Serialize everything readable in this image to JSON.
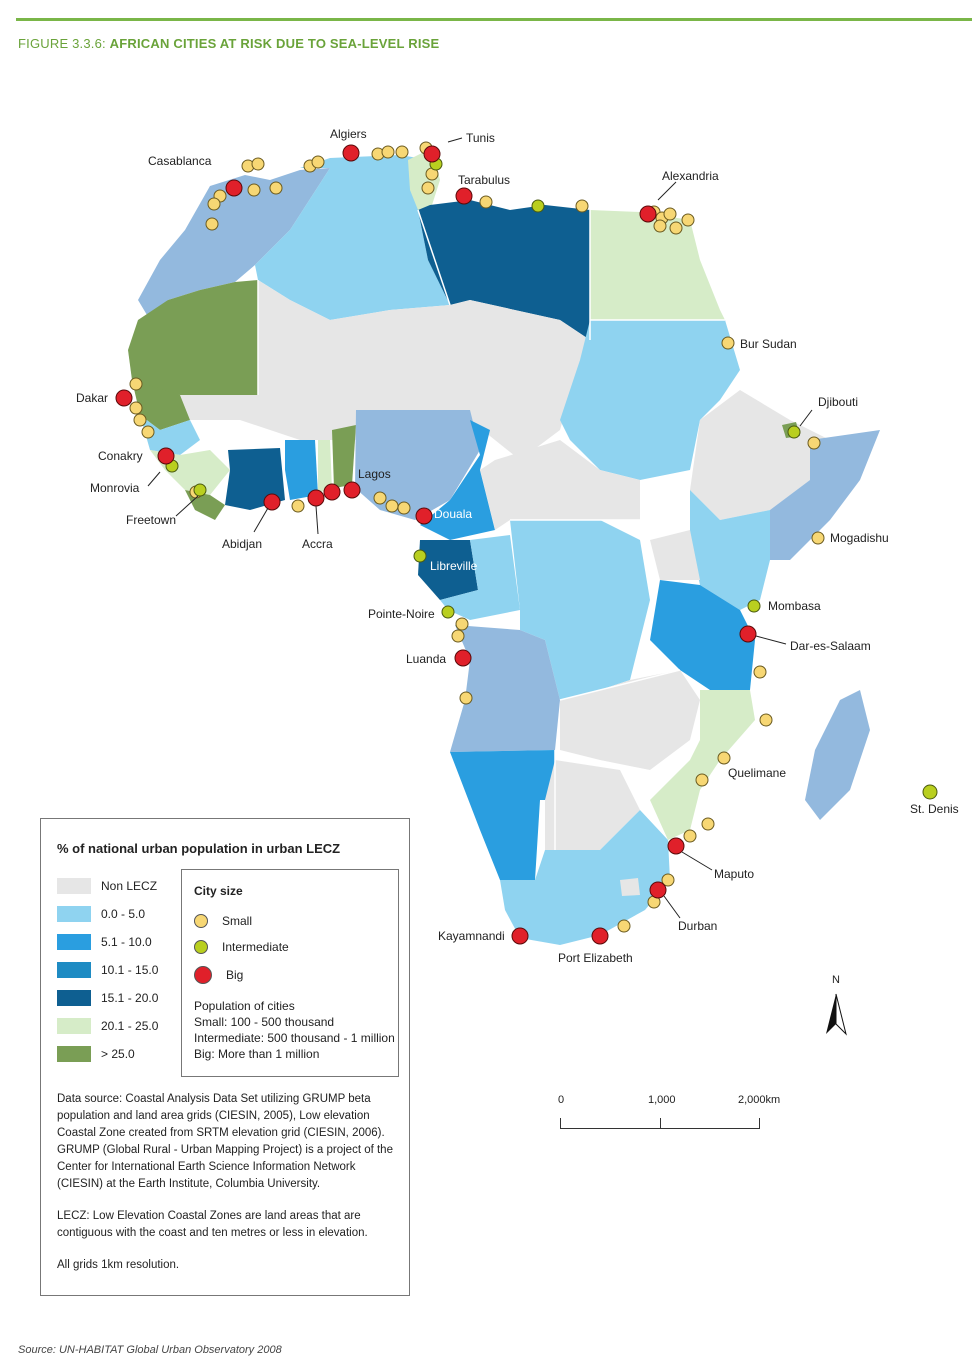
{
  "header": {
    "figure_number": "FIGURE 3.3.6:",
    "figure_title": "AFRICAN CITIES AT RISK DUE TO SEA-LEVEL RISE"
  },
  "legend": {
    "title": "% of national urban population in urban LECZ",
    "categories": [
      {
        "label": "Non LECZ",
        "color": "#e6e6e6"
      },
      {
        "label": "0.0 - 5.0",
        "color": "#8fd3f0"
      },
      {
        "label": "5.1 - 10.0",
        "color": "#2a9ee0"
      },
      {
        "label": "10.1 - 15.0",
        "color": "#1e8bc3"
      },
      {
        "label": "15.1 - 20.0",
        "color": "#0e5f91"
      },
      {
        "label": "20.1 - 25.0",
        "color": "#d6ecc8"
      },
      {
        "label": "> 25.0",
        "color": "#7a9e55"
      }
    ],
    "extra_colors": {
      "medium_blue": "#93b9de"
    },
    "city_size": {
      "title": "City size",
      "small": {
        "label": "Small",
        "color": "#f7d774"
      },
      "intermediate": {
        "label": "Intermediate",
        "color": "#b9cf1f"
      },
      "big": {
        "label": "Big",
        "color": "#e0202a"
      }
    },
    "population": {
      "heading": "Population of cities",
      "small": "Small: 100 - 500 thousand",
      "intermediate": "Intermediate: 500 thousand - 1 million",
      "big": "Big: More than 1 million"
    },
    "notes": [
      "Data source: Coastal Analysis Data Set utilizing GRUMP beta population and land area grids (CIESIN, 2005), Low elevation Coastal Zone created from SRTM elevation grid (CIESIN, 2006). GRUMP (Global Rural - Urban Mapping Project) is a project of the Center for International Earth Science Information Network (CIESIN) at the Earth Institute, Columbia University.",
      "LECZ: Low Elevation Coastal Zones are land areas that are contiguous with the coast and ten metres or less in elevation.",
      "All grids 1km resolution."
    ]
  },
  "cities": [
    {
      "name": "Algiers",
      "size": "big"
    },
    {
      "name": "Tunis",
      "size": "big"
    },
    {
      "name": "Casablanca",
      "size": "big"
    },
    {
      "name": "Tarabulus",
      "size": "big"
    },
    {
      "name": "Alexandria",
      "size": "big"
    },
    {
      "name": "Bur Sudan",
      "size": "small"
    },
    {
      "name": "Djibouti",
      "size": "intermediate"
    },
    {
      "name": "Dakar",
      "size": "big"
    },
    {
      "name": "Conakry",
      "size": "big"
    },
    {
      "name": "Monrovia",
      "size": "intermediate"
    },
    {
      "name": "Freetown",
      "size": "intermediate"
    },
    {
      "name": "Abidjan",
      "size": "big"
    },
    {
      "name": "Accra",
      "size": "big"
    },
    {
      "name": "Lagos",
      "size": "big"
    },
    {
      "name": "Douala",
      "size": "big"
    },
    {
      "name": "Libreville",
      "size": "intermediate"
    },
    {
      "name": "Mogadishu",
      "size": "small"
    },
    {
      "name": "Mombasa",
      "size": "intermediate"
    },
    {
      "name": "Dar-es-Salaam",
      "size": "big"
    },
    {
      "name": "Pointe-Noire",
      "size": "intermediate"
    },
    {
      "name": "Luanda",
      "size": "big"
    },
    {
      "name": "Quelimane",
      "size": "small"
    },
    {
      "name": "St. Denis",
      "size": "intermediate"
    },
    {
      "name": "Maputo",
      "size": "big"
    },
    {
      "name": "Durban",
      "size": "big"
    },
    {
      "name": "Kayamnandi",
      "size": "big"
    },
    {
      "name": "Port Elizabeth",
      "size": "big"
    }
  ],
  "scale": {
    "labels": [
      "0",
      "1,000",
      "2,000km"
    ]
  },
  "north_label": "N",
  "source": "Source: UN-HABITAT Global Urban Observatory 2008"
}
